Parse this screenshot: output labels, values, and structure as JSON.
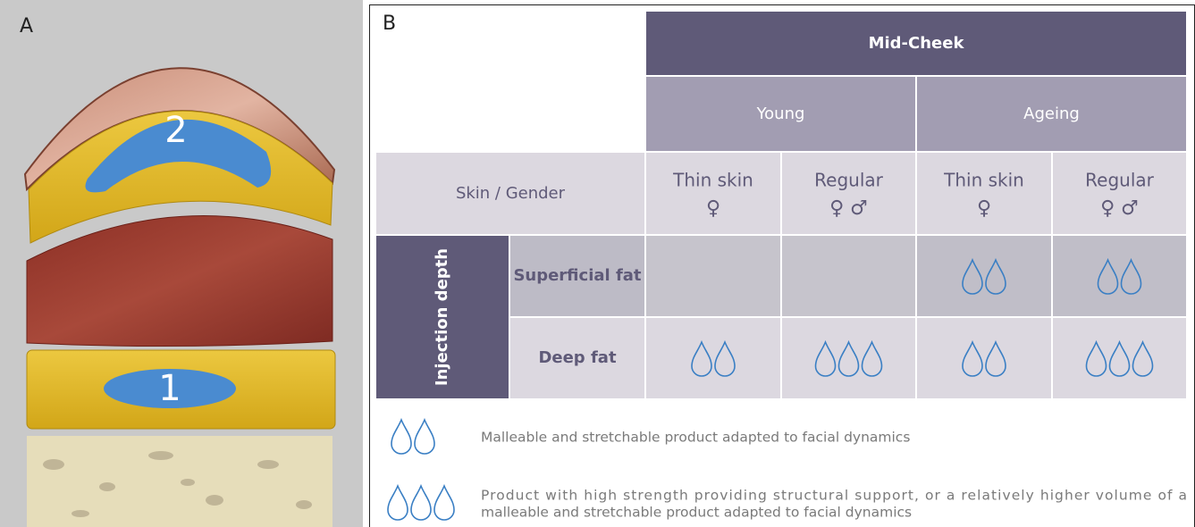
{
  "panel_a": {
    "label": "A",
    "markers": [
      "2",
      "1"
    ]
  },
  "panel_b": {
    "label": "B",
    "table": {
      "header": "Mid-Cheek",
      "groups": [
        "Young",
        "Ageing"
      ],
      "row_header": "Skin / Gender",
      "columns": [
        {
          "skin": "Thin skin",
          "gender": "♀"
        },
        {
          "skin": "Regular",
          "gender": "♀ ♂"
        },
        {
          "skin": "Thin skin",
          "gender": "♀"
        },
        {
          "skin": "Regular",
          "gender": "♀ ♂"
        }
      ],
      "depth_label": "Injection depth",
      "rows": [
        {
          "name": "Superficial fat",
          "drops": [
            0,
            0,
            2,
            2
          ]
        },
        {
          "name": "Deep fat",
          "drops": [
            2,
            3,
            2,
            3
          ]
        }
      ]
    },
    "legend": [
      {
        "drops": 2,
        "lines": [
          "Malleable and stretchable product adapted to facial dynamics"
        ]
      },
      {
        "drops": 3,
        "lines": [
          "Product with high strength providing structural support, or a relatively higher volume of a",
          "malleable and stretchable product adapted to facial dynamics"
        ]
      }
    ]
  }
}
